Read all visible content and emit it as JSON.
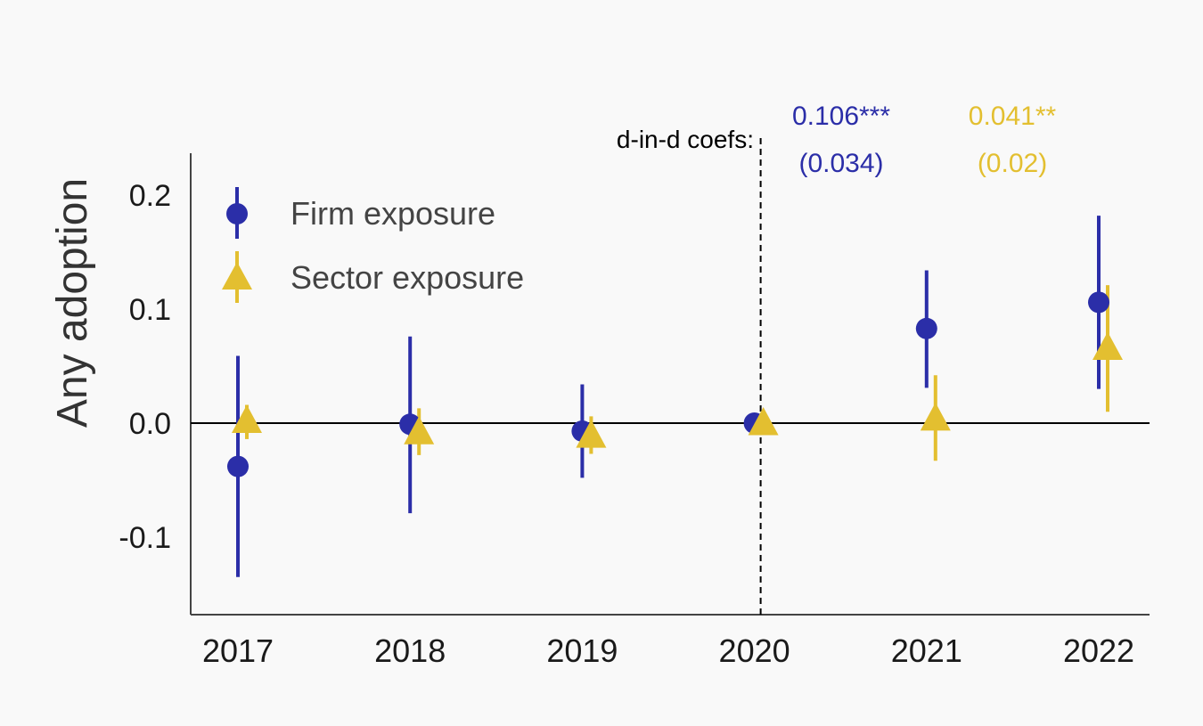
{
  "chart_data": {
    "type": "scatter",
    "title": "",
    "xlabel": "",
    "ylabel": "Any adoption",
    "categories": [
      "2017",
      "2018",
      "2019",
      "2020",
      "2021",
      "2022"
    ],
    "ylim": [
      -0.168,
      0.238
    ],
    "yticks": [
      -0.1,
      0.0,
      0.1,
      0.2
    ],
    "ytick_labels": [
      "-0.1",
      "0.0",
      "0.1",
      "0.2"
    ],
    "grid": false,
    "legend_position": "top-left",
    "reference_line_y": 0.0,
    "event_line_category": "2020",
    "series": [
      {
        "name": "Firm exposure",
        "marker": "circle",
        "color": "#2b2ea8",
        "values": [
          -0.038,
          -0.001,
          -0.007,
          0.0,
          0.083,
          0.106
        ],
        "ci_low": [
          -0.135,
          -0.079,
          -0.048,
          0.0,
          0.031,
          0.03
        ],
        "ci_high": [
          0.059,
          0.076,
          0.034,
          0.0,
          0.134,
          0.182
        ]
      },
      {
        "name": "Sector exposure",
        "marker": "triangle",
        "color": "#e3bf30",
        "values": [
          0.002,
          -0.008,
          -0.011,
          0.0,
          0.004,
          0.066
        ],
        "ci_low": [
          -0.014,
          -0.028,
          -0.027,
          0.0,
          -0.033,
          0.01
        ],
        "ci_high": [
          0.016,
          0.013,
          0.006,
          0.0,
          0.042,
          0.121
        ]
      }
    ],
    "annotations": {
      "label": "d-in-d coefs:",
      "firm_coef": "0.106***",
      "firm_se": "(0.034)",
      "sector_coef": "0.041**",
      "sector_se": "(0.02)"
    }
  }
}
